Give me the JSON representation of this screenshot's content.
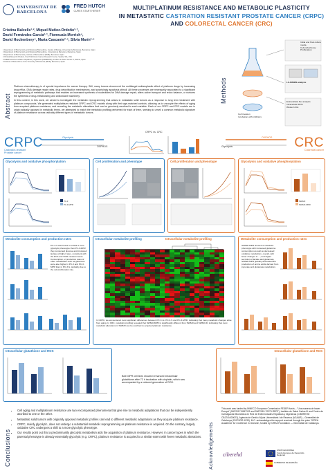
{
  "header": {
    "logo1": {
      "line1": "UNIVERSITAT DE",
      "line2": "BARCELONA"
    },
    "logo2": {
      "name": "FRED HUTCH",
      "tagline": "CURES START HERE®"
    },
    "title_line1": "Multiplatinum resistance and metabolic plasticity",
    "title_line2a": "in metastatic ",
    "title_crpc": "castration resistant prostate cancer (CRPC)",
    "title_line3a": "and ",
    "title_crc": "colorectal cancer (CRC)"
  },
  "authors": {
    "line1": "Cristina Balcells¹·², Miquel Muñoz-Ordoño¹·³,",
    "line2": "David Fernández-García²·³, Fionnuala Morrish⁴,",
    "line3": "David Hockenbery⁴, Marta Cascante²·⁵, Sílvia Marín²·⁵",
    "affiliations": [
      "1 Department of Biochemistry and Molecular Biomedicine, Faculty of Biology, Universitat de Barcelona, Barcelona, Spain",
      "2 Department of Biochemistry and Molecular Biomedicine, Universitat de Barcelona, Barcelona, Spain",
      "3 Department of Biochemistry, Institute of Biomedicine (IBUB), Barcelona, Spain",
      "4 Clinical Research Division, Fred Hutchinson Cancer Research Center, Seattle, WA, USA",
      "5 CIBER de Enfermedades Hepáticas y Digestivas (CIBEREHD), Instituto de Salud Carlos III, Madrid, Spain",
      "6 Institute of Biomedicine of the University of Barcelona (IBUB), Barcelona, Spain"
    ]
  },
  "sections": {
    "abstract": "Abstract",
    "methods": "Methods",
    "conclusions": "Conclusions",
    "acknowledgements": "Acknowledgements"
  },
  "abstract": {
    "p1": "Platinum chemotherapy is of special importance for cancer therapy. Still, many tumors circumvent the multitarget antineoplastic effect of platinum drugs by increasing drug efflux, DNA damage repair rates, drug detoxification mechanisms, and surprisingly apoptosis stimuli. All these processes are necessarily associated to a significant reprogramming of metabolic pathways that enables an increased synthesis of nucleotides for DNA damage repair, alters active transport and redox balance, or nurtures the synthesis of drug-metabolizing and antioxidant machinery.",
    "p2": "In this context, in this work, we aimed to investigate the metabolic reprogramming that arises in metastatic solid tumors as a response to long term treatment with platinum compounds. We generated multiplatinum resistant CRPC and CRC models along with their age-matched controls, allowing us to uncouple the effects of aging from acquired platinum resistance, and revealing the metabolic alterations that can be genuinely ascribed to each variable. Each of our CRPC and CRC models are in origin radically opposed in metabolic terms, we attempted to match the metabolic profiling performed for each of them, seeking to unveil a common metabolic signature of platinum resistance across radically different types of metastatic tumors."
  },
  "methods": {
    "steps": [
      "Initial and final culture media",
      "Cell pellet/assay",
      "Proliferation"
    ],
    "mass_spec": "LC-MS/MS analysis",
    "phenotype": [
      "Cell invasion",
      "Incubation with inhibitors"
    ],
    "outputs": [
      "Extracellular flux analysis",
      "Intracellular ROS",
      "Western blot"
    ]
  },
  "band": {
    "crpc": "CRPC",
    "crpc_sub": "Castration-resistant\nProstate cancer",
    "crc": "CRC",
    "crc_sub": "Colorectal cancer",
    "glycolysis": "Glycolysis",
    "oxphos": "OXPHOS",
    "chart_label": "CRPC vs. CRC"
  },
  "panels": {
    "glyco_left": "Glycolysis and oxidative phosphorylation",
    "prolif": "Cell proliferation and phenotype",
    "prolif2": "Cell proliferation and phenotype",
    "glyco_right": "Glycolysis and oxidative phosphorylation",
    "metab_left": "Metabolite consumption and production rates",
    "profiling_left": "Intracellular metabolite profiling",
    "profiling_right": "Intracellular metabolite profiling",
    "metab_right": "Metabolite consumption and production rates",
    "gsh_left": "Intracellular glutathione and ROS",
    "gsh_right": "Intracellular glutathione and ROS"
  },
  "legends": {
    "left": [
      "PC-3",
      "PC-3-MPR"
    ],
    "right": [
      "SW620",
      "SW620-MPR"
    ],
    "cond": [
      "PC-3",
      "PC-3-MPR",
      "SW620",
      "SW620-MPR"
    ]
  },
  "texts": {
    "metab_left": "PC-3-S was found to exhibit a more glycolytic phenotype than PC-3-MPR: they consumed glucose and produced lactate at higher rates, consistent with the ECA and OCR measurements. Consumption or production rates of other metabolites such as glutamine were also higher in PC-3 and PC-3-MPR than in PC-3-S, probably due to the cell proliferation rate.",
    "metab_right": "SW620-MPR showed a metabolic phenotype with increased glutamine consumption as well as decreased oxidative metabolism, overall, with fewer changes in ...; and higher secretion of lactate and glutamate. SW620-MPR globally decreased the production of amino acids derived from pyruvate and glutamate metabolism.",
    "profiling": "In CRPC, we encountered most significant differences between PC-3 vs. PC-3-S and PC-3-MPR, indicating that many metabolic changes arise from aging. In CRC, metabolic profiling revealed that SW620-MPR is significantly different from SW620 and SW620-D, indicating that most metabolic alterations in SW620 can be ascribed to acquired platinum resistance.",
    "gsh": "Both MPR cell lines showed enhanced intracellular glutathione after 72 h incubation with cisplatin, which was accompanied by a reduced generation of ROS."
  },
  "conclusions": [
    "Cell aging and multiplatinum resistance are two encompassed phenomena that give rise to metabolic adaptations that can be independently ascribed to one or the other.",
    "Metastatic solid tumors with originally opposed metabolic profiles can lead to different metabolic adaptations as they acquire platinum resistance.",
    "CRPC, mainly glycolytic, does not undergo a substantial metabolic reprogramming as platinum resistance is acquired. On the contrary, largely oxidative CRC undergoes a shift to a more glycolytic phenotype.",
    "Our results point out that a predominantly glycolytic metabolism aids the acquisition of platinum resistance. However, in cancer types in which the parental phenotype is already essentially glycolytic (e.g. CRPC), platinum resistance is acquired to a similar extent with fewer metabolic alterations."
  ],
  "acknowledgements": {
    "text": "This work was funded by MINECO European Commission FEDER funds – \"Una manera de hacer Europa\" (SAF2017-89673-R and SAF2015-70270-REDT), Instituto de Salud Carlos III and Centro de Investigación Biomédica en Red de Enfermedades Hepáticas y Digestivas (CIBEREHD CB17/04/00023), Agència de Gestió d'Ajuts Universitaris i de Recerca (AGAUR) – Generalitat de Catalunya (2017SGR-1033). M.C. acknowledges the support received through the prize \"ICREA Academia\" for excellence in research, funded by ICREA Foundation — Generalitat de Catalunya.",
    "logo_ciberehd": "ciberehd",
    "logo_eu": "UNIÓN EUROPEA",
    "logo_feder": "Fondo Europeo de Desarrollo Regional",
    "logo_spain": "GOBIERNO DE ESPAÑA"
  },
  "colors": {
    "crpc": "#2f7fc1",
    "crc": "#e0752d",
    "navy": "#1b2c4f"
  }
}
